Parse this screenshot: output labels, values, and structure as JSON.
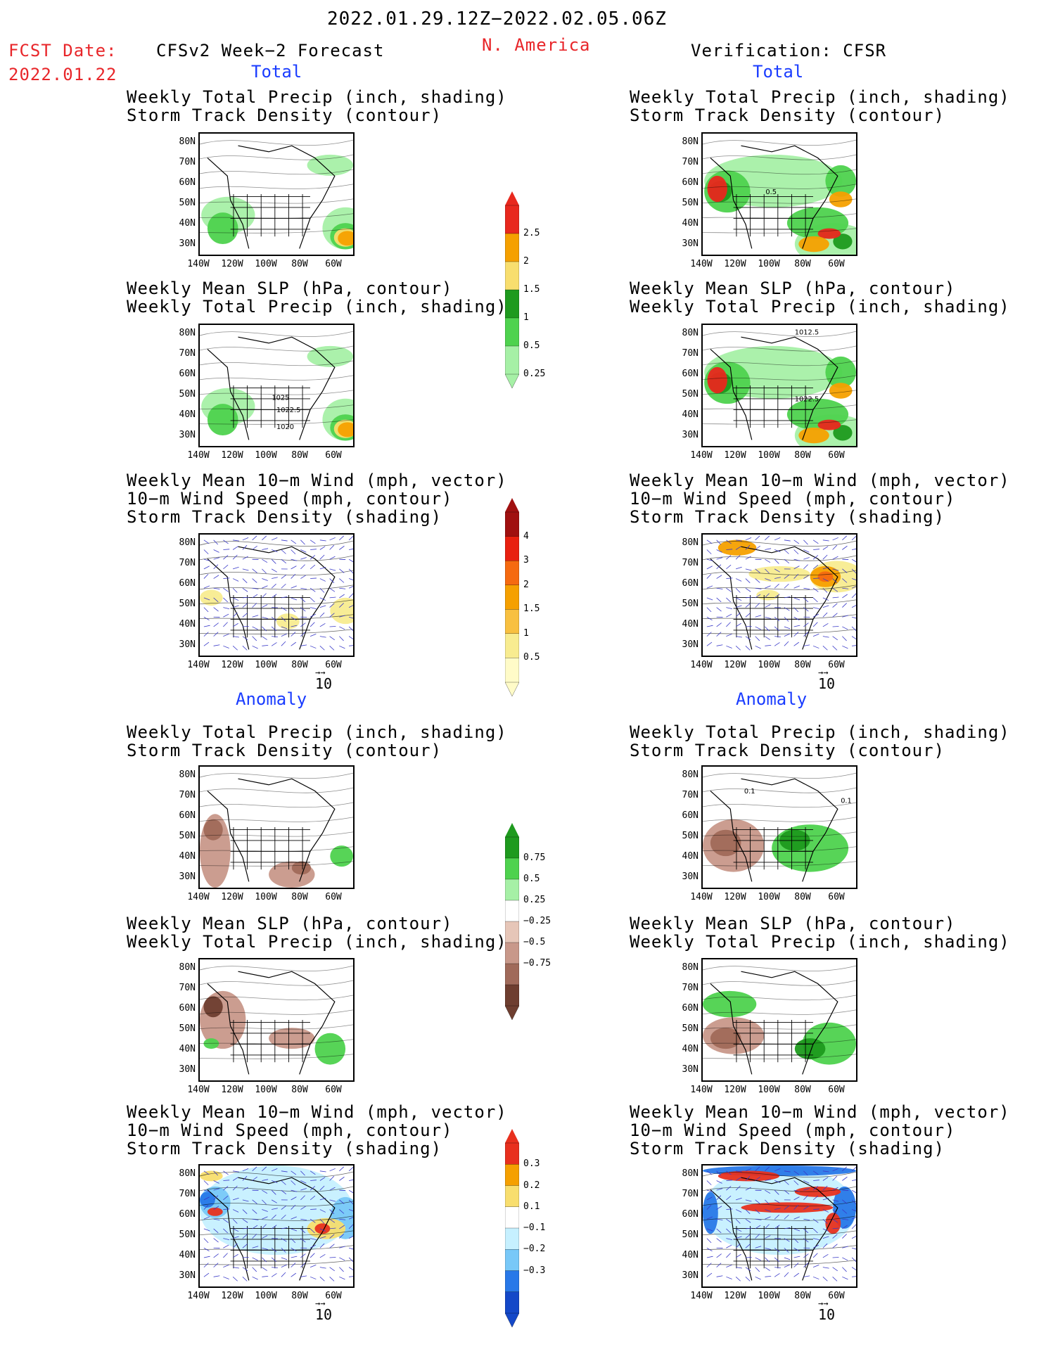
{
  "header": {
    "period": "2022.01.29.12Z−2022.02.05.06Z",
    "fcst_label": "FCST Date:",
    "fcst_date": "2022.01.22",
    "forecast_title": "CFSv2 Week−2 Forecast",
    "region": "N. America",
    "verification": "Verification: CFSR"
  },
  "sections": {
    "total": "Total",
    "anomaly": "Anomaly"
  },
  "titles": {
    "precip_storm": [
      "Weekly Total Precip (inch, shading)",
      "Storm Track Density (contour)"
    ],
    "slp_precip": [
      "Weekly Mean SLP (hPa, contour)",
      "Weekly Total Precip (inch, shading)"
    ],
    "wind_storm": [
      "Weekly Mean 10−m Wind (mph, vector)",
      "10−m Wind Speed (mph, contour)",
      "Storm Track Density (shading)"
    ]
  },
  "axes": {
    "lat": [
      "80N",
      "70N",
      "60N",
      "50N",
      "40N",
      "30N"
    ],
    "lon": [
      "140W",
      "120W",
      "100W",
      "80W",
      "60W"
    ]
  },
  "vector_ref": "10",
  "contour_labels": {
    "obs_storm": "0.5",
    "fc_slp": [
      "1025",
      "1022.5",
      "1020"
    ],
    "obs_slp": [
      "1012.5",
      "1022.5"
    ],
    "anom_obs": [
      "0.1",
      "0.1"
    ]
  },
  "colorbars": {
    "precip_total": {
      "labels": [
        "2.5",
        "2",
        "1.5",
        "1",
        "0.5",
        "0.25"
      ],
      "colors": [
        "#e8281e",
        "#f5a000",
        "#f8de6e",
        "#1e9a1e",
        "#4ed24e",
        "#a6f0a6"
      ]
    },
    "storm_total": {
      "labels": [
        "4",
        "3",
        "2",
        "1.5",
        "1",
        "0.5"
      ],
      "colors": [
        "#a01010",
        "#e82010",
        "#f56a10",
        "#f5a000",
        "#f8c040",
        "#f8ec90",
        "#fffbc8"
      ]
    },
    "precip_anom": {
      "labels": [
        "0.75",
        "0.5",
        "0.25",
        "−0.25",
        "−0.5",
        "−0.75"
      ],
      "colors": [
        "#1e9a1e",
        "#4ed24e",
        "#a6f0a6",
        "#ffffff",
        "#e6c6b8",
        "#c8988a",
        "#a06a5a",
        "#6e3e30"
      ]
    },
    "storm_anom": {
      "labels": [
        "0.3",
        "0.2",
        "0.1",
        "−0.1",
        "−0.2",
        "−0.3"
      ],
      "colors": [
        "#e8301e",
        "#f5a000",
        "#f8de6e",
        "#ffffff",
        "#c6f0ff",
        "#78c8f8",
        "#2878e8",
        "#1448c8"
      ]
    }
  }
}
